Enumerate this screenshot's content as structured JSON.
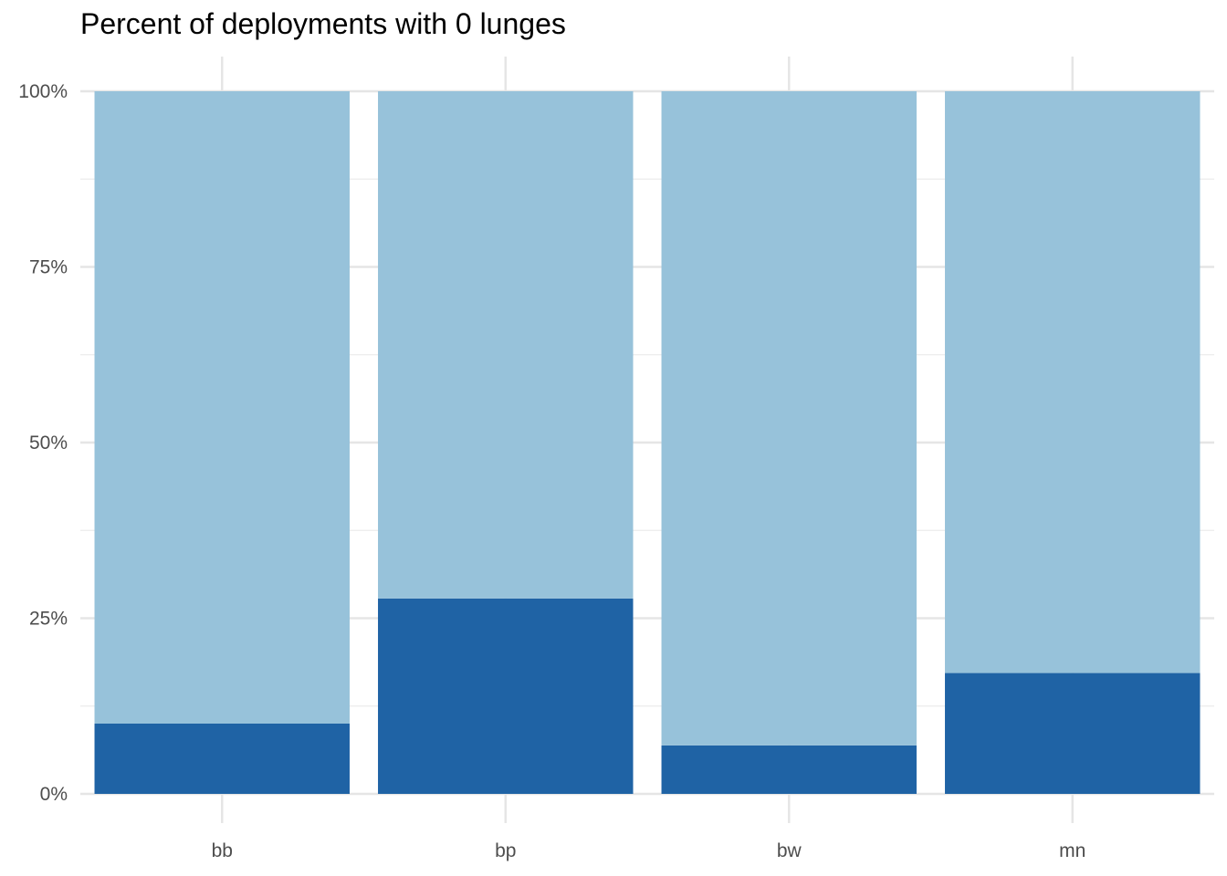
{
  "chart_data": {
    "type": "bar",
    "stacked": true,
    "title": "Percent of deployments with 0 lunges",
    "xlabel": "",
    "ylabel": "",
    "categories": [
      "bb",
      "bp",
      "bw",
      "mn"
    ],
    "series": [
      {
        "values": [
          10,
          27.8,
          6.9,
          17.2
        ],
        "color": "#1f63a5"
      },
      {
        "values": [
          90,
          72.2,
          93.1,
          82.8
        ],
        "color": "#97c2da"
      }
    ],
    "ylim": [
      0,
      100
    ],
    "yticks": [
      0,
      25,
      50,
      75,
      100
    ],
    "ytick_labels": [
      "0%",
      "25%",
      "50%",
      "75%",
      "100%"
    ],
    "grid": true,
    "legend": "none"
  }
}
